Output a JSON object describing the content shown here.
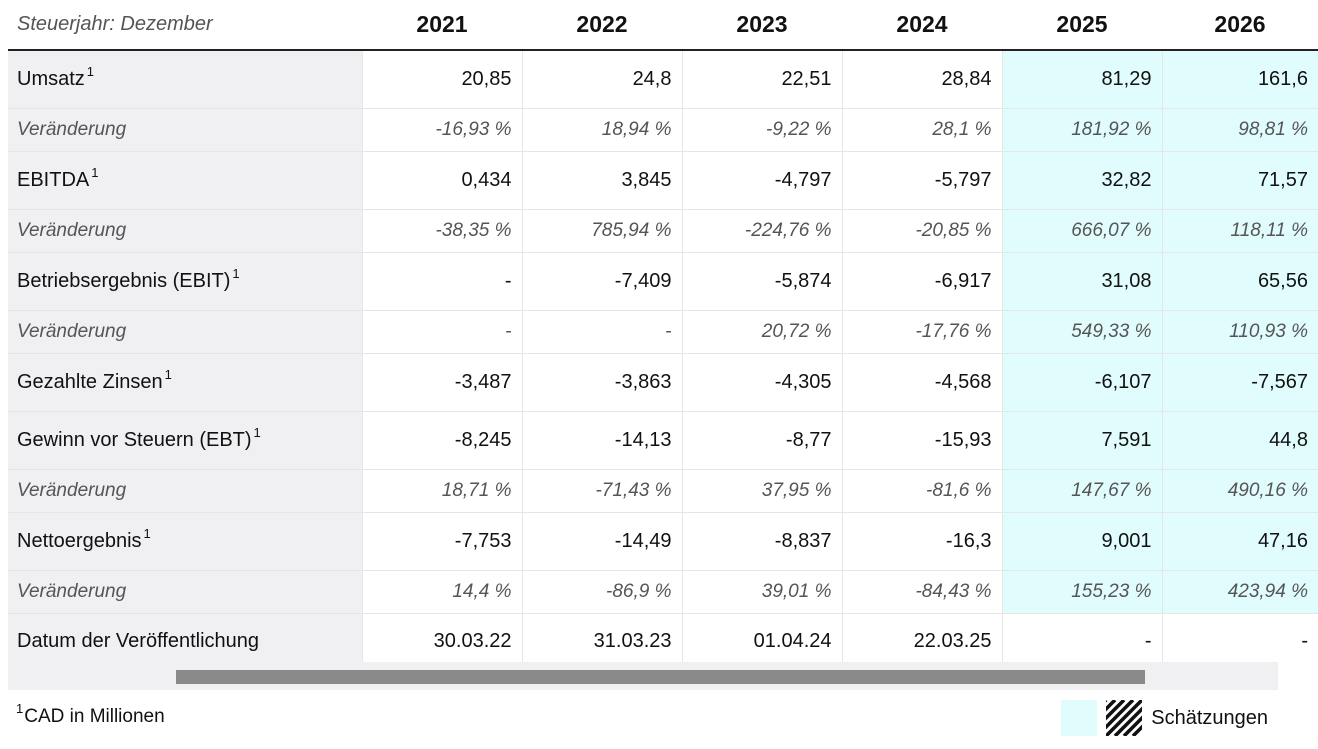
{
  "header": {
    "corner_label": "Steuerjahr: Dezember",
    "years": [
      "2021",
      "2022",
      "2023",
      "2024",
      "2025",
      "2026"
    ]
  },
  "rows": {
    "umsatz": {
      "label": "Umsatz",
      "note": "1",
      "values": [
        "20,85",
        "24,8",
        "22,51",
        "28,84",
        "81,29",
        "161,6"
      ]
    },
    "umsatz_chg": {
      "label": "Veränderung",
      "values": [
        "-16,93 %",
        "18,94 %",
        "-9,22 %",
        "28,1 %",
        "181,92 %",
        "98,81 %"
      ]
    },
    "ebitda": {
      "label": "EBITDA",
      "note": "1",
      "values": [
        "0,434",
        "3,845",
        "-4,797",
        "-5,797",
        "32,82",
        "71,57"
      ]
    },
    "ebitda_chg": {
      "label": "Veränderung",
      "values": [
        "-38,35 %",
        "785,94 %",
        "-224,76 %",
        "-20,85 %",
        "666,07 %",
        "118,11 %"
      ]
    },
    "ebit": {
      "label": "Betriebsergebnis (EBIT)",
      "note": "1",
      "values": [
        "-",
        "-7,409",
        "-5,874",
        "-6,917",
        "31,08",
        "65,56"
      ]
    },
    "ebit_chg": {
      "label": "Veränderung",
      "values": [
        "-",
        "-",
        "20,72 %",
        "-17,76 %",
        "549,33 %",
        "110,93 %"
      ]
    },
    "zinsen": {
      "label": "Gezahlte Zinsen",
      "note": "1",
      "values": [
        "-3,487",
        "-3,863",
        "-4,305",
        "-4,568",
        "-6,107",
        "-7,567"
      ]
    },
    "ebt": {
      "label": "Gewinn vor Steuern (EBT)",
      "note": "1",
      "values": [
        "-8,245",
        "-14,13",
        "-8,77",
        "-15,93",
        "7,591",
        "44,8"
      ]
    },
    "ebt_chg": {
      "label": "Veränderung",
      "values": [
        "18,71 %",
        "-71,43 %",
        "37,95 %",
        "-81,6 %",
        "147,67 %",
        "490,16 %"
      ]
    },
    "netto": {
      "label": "Nettoergebnis",
      "note": "1",
      "values": [
        "-7,753",
        "-14,49",
        "-8,837",
        "-16,3",
        "9,001",
        "47,16"
      ]
    },
    "netto_chg": {
      "label": "Veränderung",
      "values": [
        "14,4 %",
        "-86,9 %",
        "39,01 %",
        "-84,43 %",
        "155,23 %",
        "423,94 %"
      ]
    },
    "datum": {
      "label": "Datum der Veröffentlichung",
      "values": [
        "30.03.22",
        "31.03.23",
        "01.04.24",
        "22.03.25",
        "-",
        "-"
      ]
    }
  },
  "footer": {
    "footnote_mark": "1",
    "footnote_text": "CAD in Millionen",
    "legend_label": "Schätzungen"
  },
  "colors": {
    "estimate_bg": "#e1fcfd",
    "label_bg": "#f0f0f2",
    "scrollbar_thumb": "#8a8a8a"
  }
}
